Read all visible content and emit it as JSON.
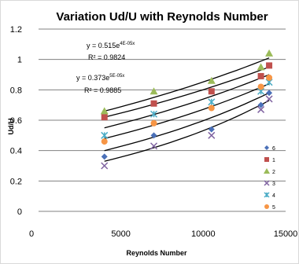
{
  "chart_data": {
    "type": "scatter",
    "title": "Variation  Ud/U with Reynolds Number",
    "xlabel": "Reynolds Number",
    "ylabel": "Ud/U",
    "xlim": [
      0,
      15000
    ],
    "ylim": [
      0,
      1.2
    ],
    "xticks": [
      0,
      5000,
      10000,
      15000
    ],
    "yticks": [
      0,
      0.2,
      0.4,
      0.6,
      0.8,
      1.0,
      1.2
    ],
    "xtick_labels": [
      "0",
      "5000",
      "10000",
      "15000"
    ],
    "ytick_labels": [
      "0",
      "0.2",
      "0.4",
      "0.6",
      "0.8",
      "1",
      "1.2"
    ],
    "grid": "horizontal",
    "legend_position": "right",
    "series": [
      {
        "name": "6",
        "marker": "diamond",
        "color": "#4a70b8",
        "x": [
          4000,
          7000,
          10500,
          13500,
          14000
        ],
        "y": [
          0.36,
          0.5,
          0.54,
          0.7,
          0.78
        ]
      },
      {
        "name": "1",
        "marker": "square",
        "color": "#c0504d",
        "x": [
          4000,
          7000,
          10500,
          13500,
          14000
        ],
        "y": [
          0.62,
          0.71,
          0.79,
          0.89,
          0.96
        ]
      },
      {
        "name": "2",
        "marker": "triangle",
        "color": "#9bbb59",
        "x": [
          4000,
          7000,
          10500,
          13500,
          14000
        ],
        "y": [
          0.66,
          0.79,
          0.86,
          0.95,
          1.04
        ]
      },
      {
        "name": "3",
        "marker": "x",
        "color": "#8064a2",
        "x": [
          4000,
          7000,
          10500,
          13500,
          14000
        ],
        "y": [
          0.3,
          0.43,
          0.5,
          0.67,
          0.74
        ]
      },
      {
        "name": "4",
        "marker": "star",
        "color": "#4bacc6",
        "x": [
          4000,
          7000,
          10500,
          13500,
          14000
        ],
        "y": [
          0.5,
          0.64,
          0.72,
          0.79,
          0.85
        ]
      },
      {
        "name": "5",
        "marker": "circle",
        "color": "#f79646",
        "x": [
          4000,
          7000,
          10500,
          13500,
          14000
        ],
        "y": [
          0.46,
          0.58,
          0.68,
          0.82,
          0.88
        ]
      }
    ],
    "trendlines": [
      {
        "y_start": 0.66,
        "y_end": 1.01
      },
      {
        "y_start": 0.62,
        "y_end": 0.95
      },
      {
        "y_start": 0.55,
        "y_end": 0.9
      },
      {
        "y_start": 0.48,
        "y_end": 0.84
      },
      {
        "y_start": 0.4,
        "y_end": 0.78
      },
      {
        "y_start": 0.33,
        "y_end": 0.73
      }
    ],
    "annotations": {
      "eq1": "y = 0.515e",
      "eq1_exp": "4E-05x",
      "r2_1": "R² = 0.9824",
      "eq2": "y = 0.373e",
      "eq2_exp": "5E-05x",
      "r2_2": "R² = 0.9885"
    }
  }
}
